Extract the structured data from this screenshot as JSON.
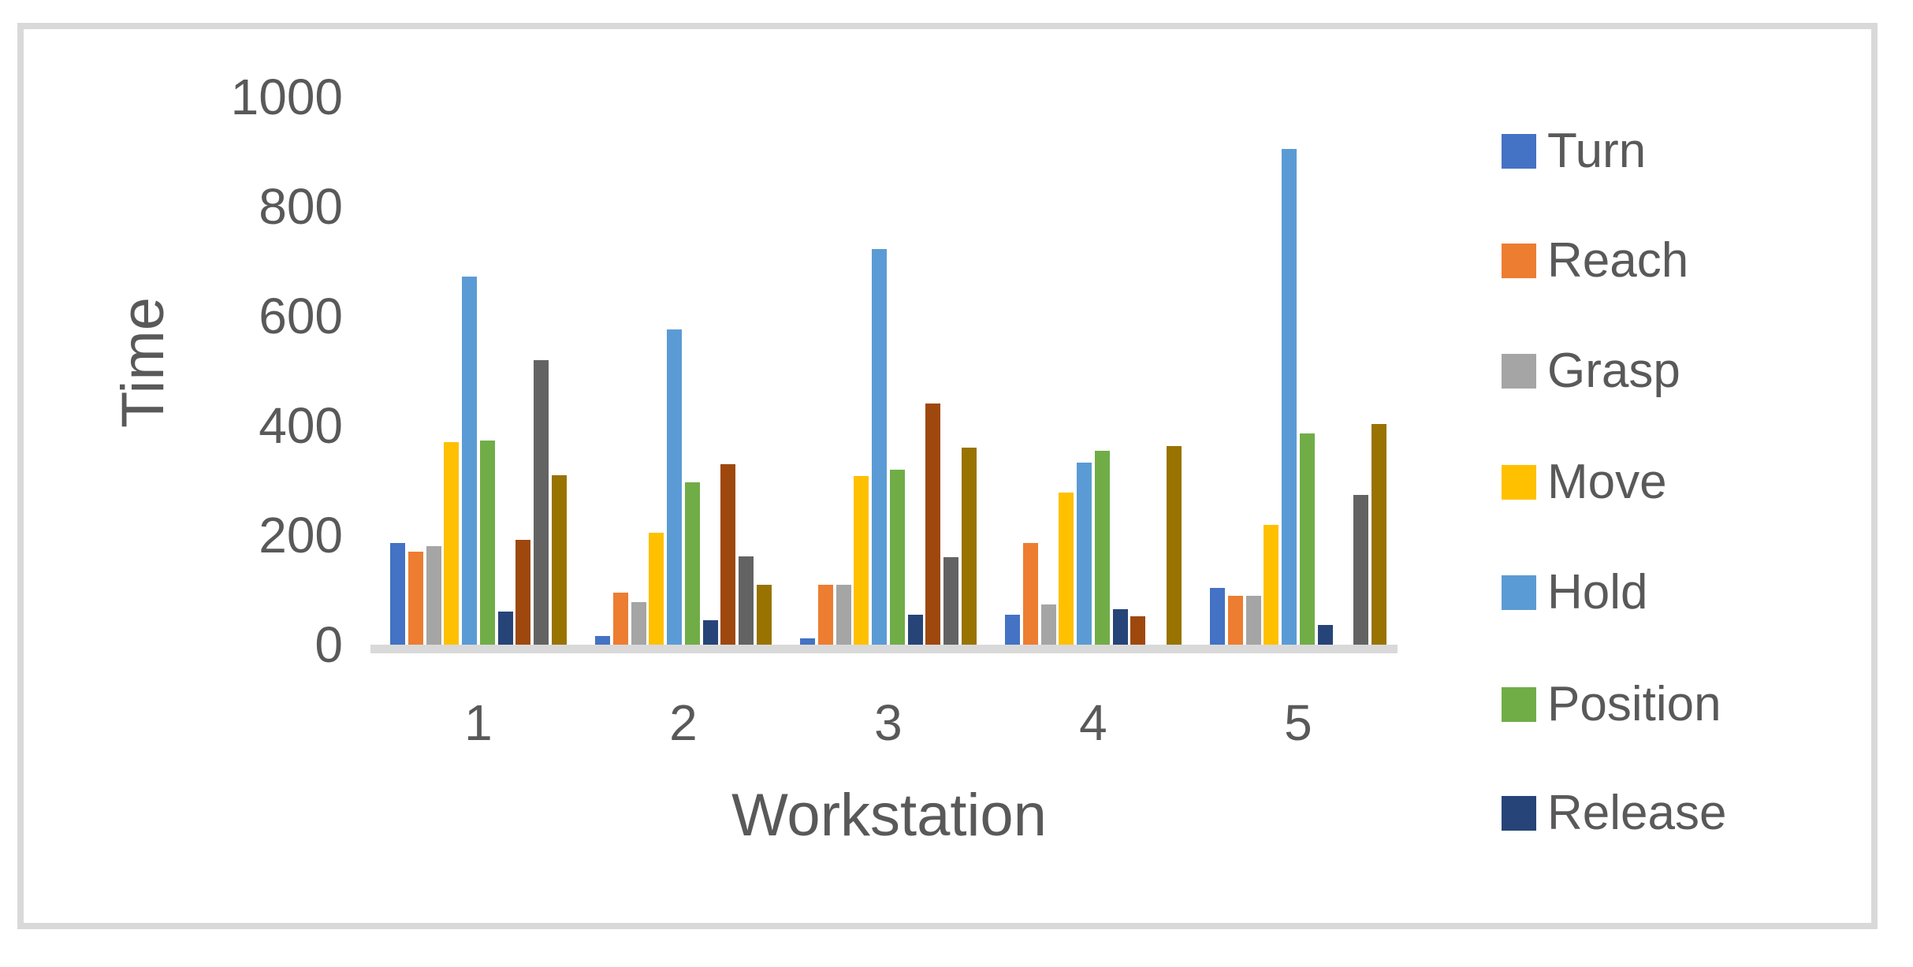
{
  "chart_data": {
    "type": "bar",
    "title": "",
    "xlabel": "Workstation",
    "ylabel": "Time",
    "categories": [
      "1",
      "2",
      "3",
      "4",
      "5"
    ],
    "yticks": [
      0,
      200,
      400,
      600,
      800,
      1000
    ],
    "ylim": [
      0,
      1000
    ],
    "grid": false,
    "legend_position": "right",
    "legend_entries": [
      "Turn",
      "Reach",
      "Grasp",
      "Move",
      "Hold",
      "Position",
      "Release"
    ],
    "series": [
      {
        "name": "Turn",
        "color": "#4472C4",
        "in_legend": true,
        "values": [
          185,
          16,
          11,
          55,
          104
        ]
      },
      {
        "name": "Reach",
        "color": "#ED7D31",
        "in_legend": true,
        "values": [
          170,
          95,
          110,
          185,
          89
        ]
      },
      {
        "name": "Grasp",
        "color": "#A5A5A5",
        "in_legend": true,
        "values": [
          180,
          78,
          110,
          73,
          89
        ]
      },
      {
        "name": "Move",
        "color": "#FFC000",
        "in_legend": true,
        "values": [
          370,
          205,
          308,
          278,
          219
        ]
      },
      {
        "name": "Hold",
        "color": "#5B9BD5",
        "in_legend": true,
        "values": [
          672,
          575,
          722,
          332,
          905
        ]
      },
      {
        "name": "Position",
        "color": "#70AD47",
        "in_legend": true,
        "values": [
          372,
          297,
          320,
          354,
          385
        ]
      },
      {
        "name": "Release",
        "color": "#264478",
        "in_legend": true,
        "values": [
          60,
          45,
          55,
          65,
          36
        ]
      },
      {
        "name": "",
        "color": "#9E480E",
        "in_legend": false,
        "values": [
          192,
          330,
          440,
          52,
          0
        ]
      },
      {
        "name": "",
        "color": "#636363",
        "in_legend": false,
        "values": [
          520,
          161,
          160,
          0,
          273
        ]
      },
      {
        "name": "",
        "color": "#997300",
        "in_legend": false,
        "values": [
          310,
          110,
          360,
          362,
          403
        ]
      }
    ]
  },
  "colors": {
    "text": "#595959",
    "axis_line": "#D9D9D9",
    "frame_border": "#D9D9D9",
    "background": "#FFFFFF"
  }
}
